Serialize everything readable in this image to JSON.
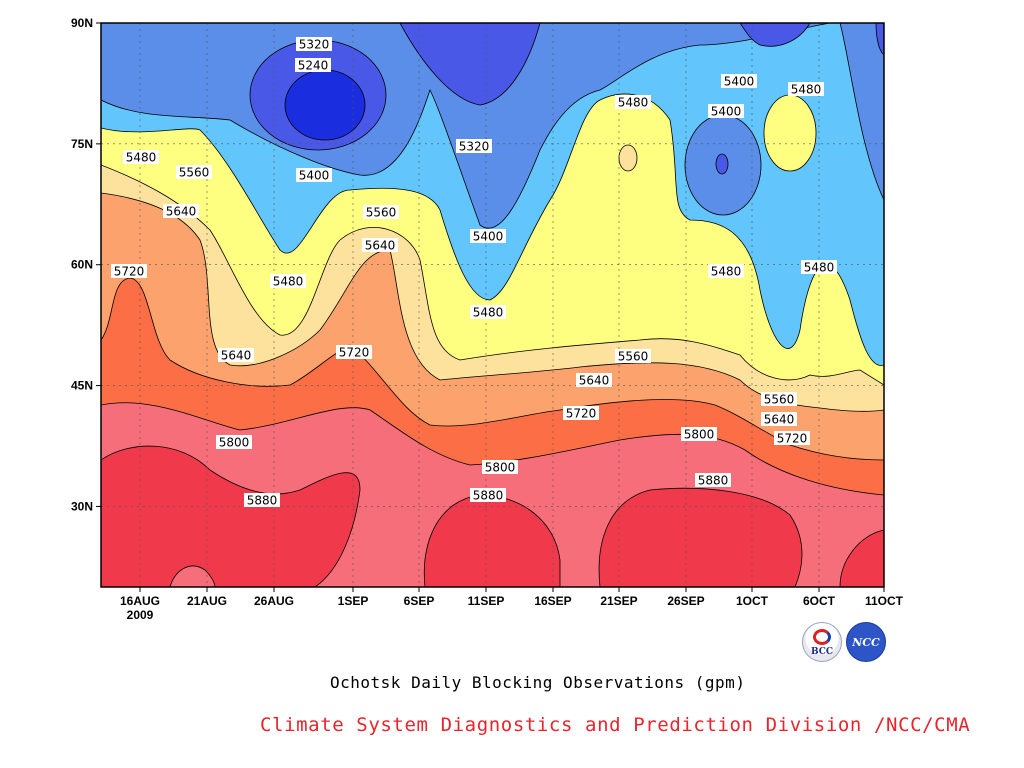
{
  "chart_data": {
    "type": "heatmap",
    "subtype": "filled-contour",
    "title": "Ochotsk Daily Blocking Observations (gpm)",
    "x_axis": {
      "ticks": [
        "16AUG",
        "21AUG",
        "26AUG",
        "1SEP",
        "6SEP",
        "11SEP",
        "16SEP",
        "21SEP",
        "26SEP",
        "1OCT",
        "6OCT",
        "11OCT"
      ],
      "year_label": "2009",
      "range": [
        "2009-08-12",
        "2009-10-11"
      ]
    },
    "y_axis": {
      "ticks": [
        "30N",
        "45N",
        "60N",
        "75N",
        "90N"
      ],
      "range": [
        20,
        90
      ],
      "units": "degrees latitude"
    },
    "contour_levels": [
      5240,
      5320,
      5400,
      5480,
      5560,
      5640,
      5720,
      5800,
      5880
    ],
    "fill_colors": [
      "#1a2ee0",
      "#4a58e8",
      "#5b8ee8",
      "#62c5fc",
      "#fefe80",
      "#fde29e",
      "#fca26c",
      "#fb6e46",
      "#f56e7a",
      "#f03a4c"
    ],
    "series": [
      {
        "x": [
          "16AUG",
          "21AUG",
          "26AUG",
          "1SEP",
          "6SEP",
          "11SEP",
          "16SEP",
          "21SEP",
          "26SEP",
          "1OCT",
          "6OCT",
          "11OCT"
        ],
        "level": 5720,
        "lat": [
          55,
          52,
          46,
          49,
          46,
          38,
          40,
          42,
          42,
          40,
          37,
          33
        ]
      },
      {
        "level": 5880,
        "lat": [
          36,
          34,
          30,
          26,
          20,
          29,
          26,
          31,
          33,
          27,
          20,
          25
        ]
      }
    ],
    "contour_labels": [
      {
        "text": "5320"
      },
      {
        "text": "5240"
      },
      {
        "text": "5480"
      },
      {
        "text": "5560"
      },
      {
        "text": "5400"
      },
      {
        "text": "5320"
      },
      {
        "text": "5640"
      },
      {
        "text": "5560"
      },
      {
        "text": "5400"
      },
      {
        "text": "5720"
      },
      {
        "text": "5640"
      },
      {
        "text": "5480"
      },
      {
        "text": "5480"
      },
      {
        "text": "5720"
      },
      {
        "text": "5640"
      },
      {
        "text": "5480"
      },
      {
        "text": "5400"
      },
      {
        "text": "5480"
      },
      {
        "text": "5400"
      },
      {
        "text": "5480"
      },
      {
        "text": "5480"
      },
      {
        "text": "5560"
      },
      {
        "text": "5640"
      },
      {
        "text": "5720"
      },
      {
        "text": "5560"
      },
      {
        "text": "5640"
      },
      {
        "text": "5800"
      },
      {
        "text": "5800"
      },
      {
        "text": "5720"
      },
      {
        "text": "5800"
      },
      {
        "text": "5880"
      },
      {
        "text": "5880"
      },
      {
        "text": "5880"
      }
    ],
    "grid": true
  },
  "caption": {
    "title": "Ochotsk Daily Blocking Observations (gpm)",
    "org": "Climate System Diagnostics and Prediction Division /NCC/CMA"
  },
  "logos": {
    "bcc_text": "BCC",
    "ncc_text": "NCC"
  }
}
